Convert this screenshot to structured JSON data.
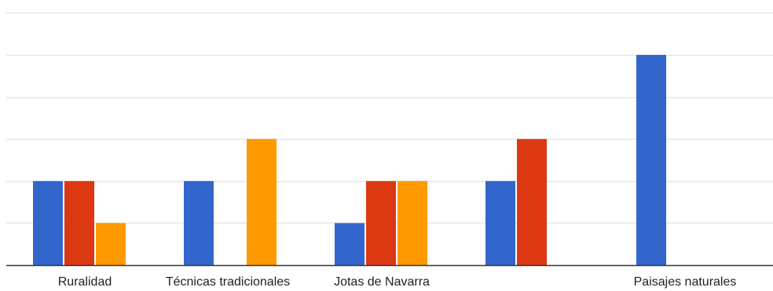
{
  "chart_data": {
    "type": "bar",
    "categories": [
      "Ruralidad",
      "Técnicas tradicionales",
      "Jotas de Navarra",
      "",
      "Paisajes naturales"
    ],
    "series": [
      {
        "values": [
          2,
          2,
          1,
          2,
          5
        ],
        "color": "#3366cc"
      },
      {
        "values": [
          2,
          0,
          2,
          3,
          0
        ],
        "color": "#dc3912"
      },
      {
        "values": [
          1,
          3,
          2,
          0,
          0
        ],
        "color": "#ff9900"
      }
    ],
    "ylim": [
      0,
      6
    ],
    "grid": true,
    "legend": "none",
    "gridline_color": "#e6e6e6",
    "baseline_color": "#333333"
  }
}
